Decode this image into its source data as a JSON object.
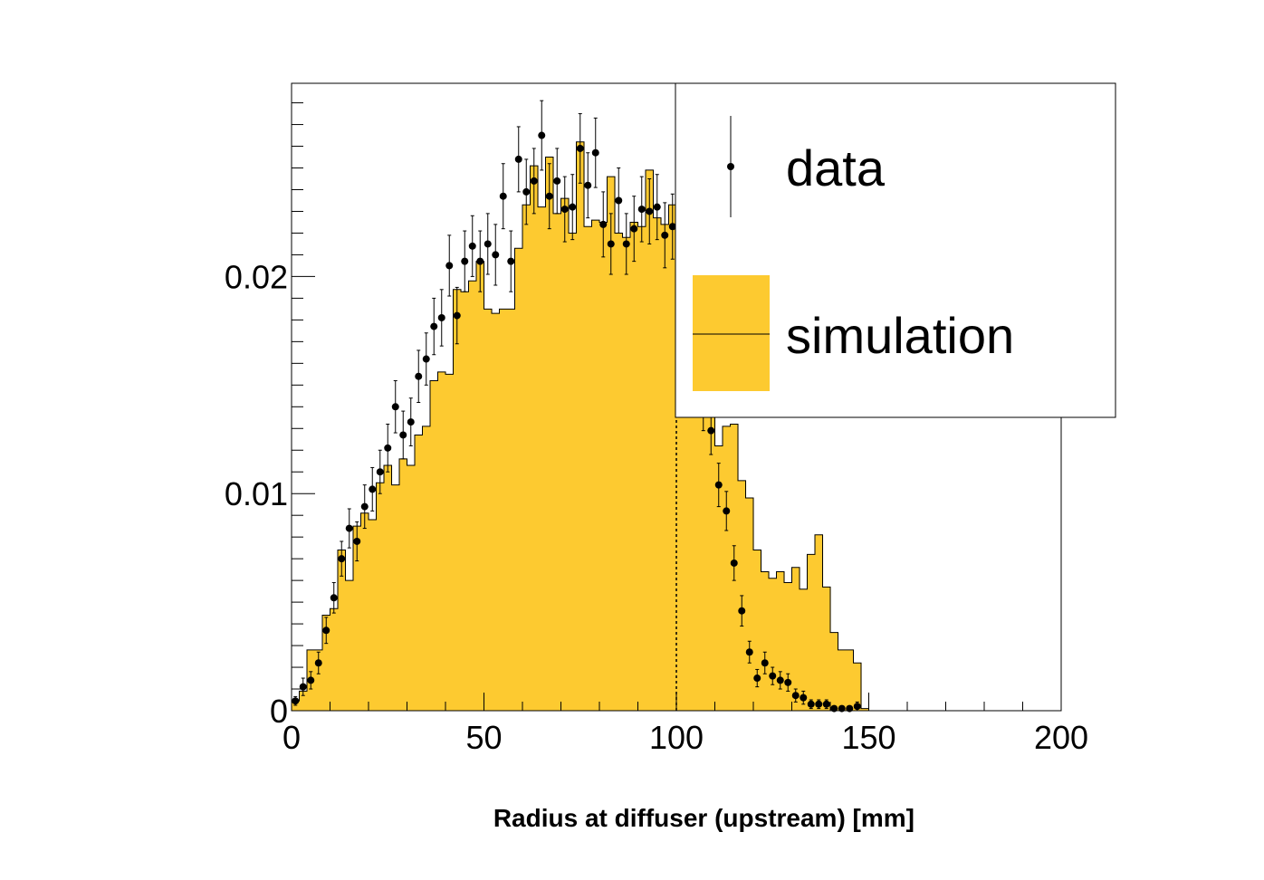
{
  "chart_data": {
    "type": "bar",
    "xlabel": "Radius at diffuser (upstream) [mm]",
    "ylabel": "",
    "title": "",
    "xlim": [
      0,
      200
    ],
    "ylim": [
      0,
      0.0289
    ],
    "x_ticks": [
      "0",
      "50",
      "100",
      "150",
      "200"
    ],
    "y_ticks": [
      "0",
      "0.01",
      "0.02"
    ],
    "x_tick_values": [
      0,
      50,
      100,
      150,
      200
    ],
    "y_tick_values": [
      0,
      0.01,
      0.02
    ],
    "cut_line_x": 100,
    "bin_width": 2,
    "legend": {
      "position": "top-right",
      "entries": [
        "data",
        "simulation"
      ]
    },
    "colors": {
      "simulation_fill": "#fdca30",
      "line": "#000000",
      "marker": "#000000"
    },
    "series": [
      {
        "name": "simulation",
        "kind": "histogram",
        "x_start": [
          0,
          2,
          4,
          6,
          8,
          10,
          12,
          14,
          16,
          18,
          20,
          22,
          24,
          26,
          28,
          30,
          32,
          34,
          36,
          38,
          40,
          42,
          44,
          46,
          48,
          50,
          52,
          54,
          56,
          58,
          60,
          62,
          64,
          66,
          68,
          70,
          72,
          74,
          76,
          78,
          80,
          82,
          84,
          86,
          88,
          90,
          92,
          94,
          96,
          98,
          100,
          102,
          104,
          106,
          108,
          110,
          112,
          114,
          116,
          118,
          120,
          122,
          124,
          126,
          128,
          130,
          132,
          134,
          136,
          138,
          140,
          142,
          144,
          146,
          148
        ],
        "values": [
          0.00045,
          0.0009,
          0.0028,
          0.0028,
          0.0044,
          0.0047,
          0.0074,
          0.006,
          0.0085,
          0.0091,
          0.0088,
          0.0105,
          0.0113,
          0.0104,
          0.0116,
          0.0113,
          0.0127,
          0.0131,
          0.0152,
          0.0156,
          0.0155,
          0.0194,
          0.0193,
          0.0198,
          0.0207,
          0.0185,
          0.0183,
          0.0185,
          0.0185,
          0.0213,
          0.0233,
          0.0251,
          0.0232,
          0.0255,
          0.0229,
          0.0236,
          0.022,
          0.0262,
          0.0223,
          0.0226,
          0.0225,
          0.0246,
          0.022,
          0.0218,
          0.0225,
          0.0223,
          0.0249,
          0.0227,
          0.0224,
          0.0233,
          0.0206,
          0.0232,
          0.0193,
          0.0159,
          0.0141,
          0.0122,
          0.0131,
          0.0132,
          0.0106,
          0.0098,
          0.0074,
          0.0064,
          0.0061,
          0.0064,
          0.0059,
          0.0066,
          0.0056,
          0.0072,
          0.0081,
          0.0057,
          0.0036,
          0.0028,
          0.0028,
          0.0022,
          0.0001
        ]
      },
      {
        "name": "data",
        "kind": "points_with_errors",
        "x": [
          1,
          3,
          5,
          7,
          9,
          11,
          13,
          15,
          17,
          19,
          21,
          23,
          25,
          27,
          29,
          31,
          33,
          35,
          37,
          39,
          41,
          43,
          45,
          47,
          49,
          51,
          53,
          55,
          57,
          59,
          61,
          63,
          65,
          67,
          69,
          71,
          73,
          75,
          77,
          79,
          81,
          83,
          85,
          87,
          89,
          91,
          93,
          95,
          97,
          99,
          101,
          103,
          105,
          107,
          109,
          111,
          113,
          115,
          117,
          119,
          121,
          123,
          125,
          127,
          129,
          131,
          133,
          135,
          137,
          139,
          141,
          143,
          145,
          147
        ],
        "y": [
          0.00045,
          0.0011,
          0.0014,
          0.0022,
          0.0037,
          0.0052,
          0.007,
          0.0084,
          0.0078,
          0.0094,
          0.0102,
          0.011,
          0.0121,
          0.014,
          0.0127,
          0.0133,
          0.0154,
          0.0162,
          0.0177,
          0.0181,
          0.0205,
          0.0182,
          0.0207,
          0.0214,
          0.0207,
          0.0215,
          0.021,
          0.0237,
          0.0207,
          0.0254,
          0.0239,
          0.0244,
          0.0265,
          0.0237,
          0.0244,
          0.0231,
          0.0232,
          0.0259,
          0.0242,
          0.0257,
          0.0224,
          0.0215,
          0.0235,
          0.0215,
          0.0222,
          0.0231,
          0.023,
          0.0232,
          0.0219,
          0.0223,
          0.0214,
          0.0211,
          0.0182,
          0.0141,
          0.0129,
          0.0104,
          0.0092,
          0.0068,
          0.0046,
          0.0027,
          0.0015,
          0.0022,
          0.0016,
          0.0014,
          0.0013,
          0.0007,
          0.0006,
          0.0003,
          0.0003,
          0.0003,
          0.0001,
          0.0001,
          0.0001,
          0.0002
        ],
        "errors": [
          0.0002,
          0.0004,
          0.0004,
          0.0005,
          0.0006,
          0.0007,
          0.0008,
          0.0009,
          0.0009,
          0.001,
          0.001,
          0.001,
          0.0011,
          0.0012,
          0.0011,
          0.0011,
          0.0012,
          0.0012,
          0.0013,
          0.0013,
          0.0014,
          0.0013,
          0.0014,
          0.0014,
          0.0014,
          0.0014,
          0.0014,
          0.0015,
          0.0014,
          0.0015,
          0.0015,
          0.0015,
          0.0016,
          0.0015,
          0.0015,
          0.0015,
          0.0015,
          0.0016,
          0.0015,
          0.0016,
          0.0015,
          0.0014,
          0.0015,
          0.0014,
          0.0015,
          0.0015,
          0.0015,
          0.0015,
          0.0015,
          0.0015,
          0.0014,
          0.0014,
          0.0013,
          0.0012,
          0.0011,
          0.001,
          0.0009,
          0.0008,
          0.0007,
          0.0005,
          0.0004,
          0.0005,
          0.0004,
          0.0004,
          0.0004,
          0.0003,
          0.0003,
          0.0002,
          0.0002,
          0.0002,
          0.0001,
          0.0001,
          0.0001,
          0.0002
        ]
      }
    ]
  }
}
